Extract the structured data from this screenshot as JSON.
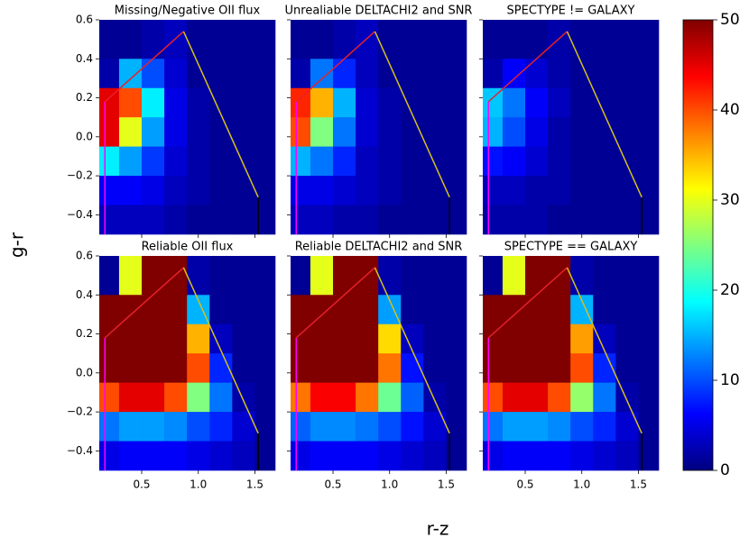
{
  "chart_data": {
    "type": "heatmap",
    "x_label": "r-z",
    "y_label": "g-r",
    "xlim": [
      0.125,
      1.68
    ],
    "ylim": [
      -0.5,
      0.6
    ],
    "xticks": [
      0.5,
      {
        "value": 1,
        "label": "1.0"
      },
      1.5
    ],
    "yticks": [
      {
        "value": -0.4,
        "label": "−0.4"
      },
      {
        "value": -0.2,
        "label": "−0.2"
      },
      {
        "value": 0,
        "label": "0.0"
      },
      0.2,
      0.4,
      0.6
    ],
    "x_bins": [
      0.125,
      0.3,
      0.5,
      0.7,
      0.9,
      1.1,
      1.3,
      1.5,
      1.68
    ],
    "y_bins": [
      0.6,
      0.4,
      0.25,
      0.1,
      -0.05,
      -0.2,
      -0.35,
      -0.5
    ],
    "clim": [
      0,
      50
    ],
    "cticks": [
      0,
      10,
      20,
      30,
      40,
      50
    ],
    "colormap": "jet",
    "lines": [
      {
        "color": "#ff00ff",
        "x": [
          0.175,
          0.175
        ],
        "y": [
          -0.5,
          0.18
        ]
      },
      {
        "color": "#e8202a",
        "x": [
          0.175,
          0.87
        ],
        "y": [
          0.18,
          0.54
        ]
      },
      {
        "color": "#d4c020",
        "x": [
          0.87,
          1.53
        ],
        "y": [
          0.54,
          -0.31
        ]
      },
      {
        "color": "#000000",
        "x": [
          1.53,
          1.53
        ],
        "y": [
          -0.31,
          -0.5
        ]
      }
    ],
    "panels": [
      {
        "title": "Missing/Negative OII flux",
        "values": [
          [
            1,
            1,
            2,
            3,
            1,
            1,
            1,
            1
          ],
          [
            2,
            15,
            10,
            4,
            1,
            1,
            1,
            1
          ],
          [
            45,
            40,
            18,
            5,
            2,
            1,
            1,
            1
          ],
          [
            45,
            30,
            14,
            5,
            2,
            1,
            1,
            1
          ],
          [
            18,
            14,
            9,
            4,
            2,
            1,
            1,
            1
          ],
          [
            6,
            6,
            5,
            3,
            2,
            1,
            1,
            1
          ],
          [
            3,
            3,
            3,
            2,
            1,
            1,
            1,
            1
          ]
        ]
      },
      {
        "title": "Unrealiable DELTACHI2 and SNR",
        "values": [
          [
            1,
            1,
            2,
            3,
            1,
            1,
            1,
            1
          ],
          [
            2,
            12,
            8,
            3,
            1,
            1,
            1,
            1
          ],
          [
            42,
            35,
            15,
            4,
            2,
            1,
            1,
            1
          ],
          [
            40,
            25,
            12,
            4,
            2,
            1,
            1,
            1
          ],
          [
            15,
            12,
            8,
            3,
            2,
            1,
            1,
            1
          ],
          [
            5,
            5,
            4,
            3,
            2,
            1,
            1,
            1
          ],
          [
            3,
            3,
            2,
            2,
            1,
            1,
            1,
            1
          ]
        ]
      },
      {
        "title": "SPECTYPE != GALAXY",
        "values": [
          [
            1,
            1,
            1,
            2,
            1,
            1,
            1,
            1
          ],
          [
            2,
            6,
            4,
            2,
            1,
            1,
            1,
            1
          ],
          [
            16,
            12,
            6,
            3,
            1,
            1,
            1,
            1
          ],
          [
            15,
            10,
            5,
            2,
            1,
            1,
            1,
            1
          ],
          [
            7,
            6,
            4,
            2,
            1,
            1,
            1,
            1
          ],
          [
            3,
            3,
            2,
            2,
            1,
            1,
            1,
            1
          ],
          [
            2,
            2,
            2,
            1,
            1,
            1,
            1,
            1
          ]
        ]
      },
      {
        "title": "Reliable OII flux",
        "values": [
          [
            1,
            30,
            50,
            50,
            2,
            1,
            1,
            1
          ],
          [
            50,
            50,
            50,
            50,
            15,
            1,
            1,
            1
          ],
          [
            50,
            50,
            50,
            50,
            35,
            3,
            1,
            1
          ],
          [
            50,
            50,
            50,
            50,
            40,
            8,
            1,
            1
          ],
          [
            40,
            45,
            45,
            40,
            25,
            12,
            2,
            1
          ],
          [
            12,
            14,
            14,
            13,
            10,
            8,
            4,
            1
          ],
          [
            5,
            6,
            6,
            6,
            5,
            4,
            3,
            1
          ]
        ]
      },
      {
        "title": "Reliable DELTACHI2 and SNR",
        "values": [
          [
            1,
            30,
            50,
            50,
            2,
            1,
            1,
            1
          ],
          [
            50,
            50,
            50,
            50,
            14,
            1,
            1,
            1
          ],
          [
            50,
            50,
            50,
            50,
            33,
            3,
            1,
            1
          ],
          [
            50,
            50,
            50,
            50,
            38,
            7,
            1,
            1
          ],
          [
            38,
            44,
            44,
            38,
            24,
            11,
            2,
            1
          ],
          [
            11,
            13,
            13,
            12,
            10,
            7,
            4,
            1
          ],
          [
            5,
            6,
            6,
            6,
            5,
            4,
            3,
            1
          ]
        ]
      },
      {
        "title": "SPECTYPE == GALAXY",
        "values": [
          [
            1,
            30,
            50,
            50,
            2,
            1,
            1,
            1
          ],
          [
            50,
            50,
            50,
            50,
            15,
            1,
            1,
            1
          ],
          [
            50,
            50,
            50,
            50,
            36,
            3,
            1,
            1
          ],
          [
            50,
            50,
            50,
            50,
            40,
            8,
            1,
            1
          ],
          [
            40,
            45,
            45,
            40,
            26,
            12,
            2,
            1
          ],
          [
            12,
            14,
            14,
            13,
            10,
            8,
            4,
            1
          ],
          [
            5,
            6,
            6,
            6,
            5,
            4,
            3,
            1
          ]
        ]
      }
    ]
  }
}
